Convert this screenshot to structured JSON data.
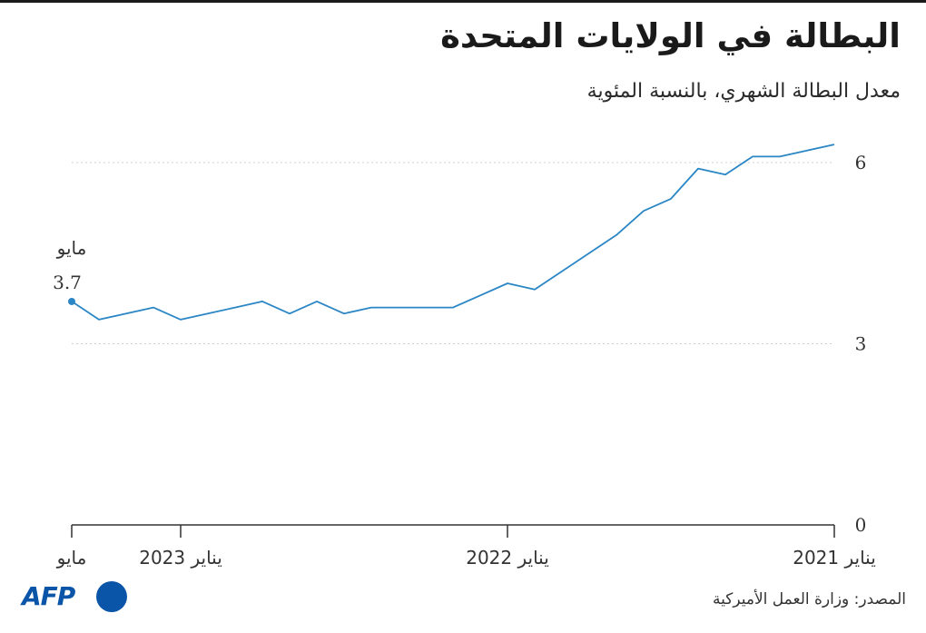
{
  "title": "البطالة في الولايات المتحدة",
  "subtitle": "معدل البطالة الشهري، بالنسبة المئوية",
  "source": "المصدر: وزارة العمل الأميركية",
  "logo": {
    "text": "AFP"
  },
  "annotation": {
    "label": "مايو",
    "value": "3.7"
  },
  "colors": {
    "line": "#2b86c5",
    "grid": "#cfcfcf",
    "axis": "#333333",
    "logo": "#0a55a8"
  },
  "chart_data": {
    "type": "line",
    "title": "البطالة في الولايات المتحدة",
    "subtitle": "معدل البطالة الشهري، بالنسبة المئوية",
    "x_direction": "right-to-left",
    "ylim": [
      0,
      6.3
    ],
    "y_ticks": [
      {
        "value": 0,
        "label": "0"
      },
      {
        "value": 3,
        "label": "3"
      },
      {
        "value": 6,
        "label": "6"
      }
    ],
    "x_ticks": [
      {
        "index": 0,
        "label": "يناير 2021"
      },
      {
        "index": 12,
        "label": "يناير 2022"
      },
      {
        "index": 24,
        "label": "يناير 2023"
      },
      {
        "index": 28,
        "label": "مايو"
      }
    ],
    "grid": true,
    "series": [
      {
        "x": [
          "2021-01",
          "2021-02",
          "2021-03",
          "2021-04",
          "2021-05",
          "2021-06",
          "2021-07",
          "2021-08",
          "2021-09",
          "2021-10",
          "2021-11",
          "2021-12",
          "2022-01",
          "2022-02",
          "2022-03",
          "2022-04",
          "2022-05",
          "2022-06",
          "2022-07",
          "2022-08",
          "2022-09",
          "2022-10",
          "2022-11",
          "2022-12",
          "2023-01",
          "2023-02",
          "2023-03",
          "2023-04",
          "2023-05"
        ],
        "values": [
          6.3,
          6.2,
          6.1,
          6.1,
          5.8,
          5.9,
          5.4,
          5.2,
          4.8,
          4.5,
          4.2,
          3.9,
          4.0,
          3.8,
          3.6,
          3.6,
          3.6,
          3.6,
          3.5,
          3.7,
          3.5,
          3.7,
          3.6,
          3.5,
          3.4,
          3.6,
          3.5,
          3.4,
          3.7
        ]
      }
    ]
  }
}
